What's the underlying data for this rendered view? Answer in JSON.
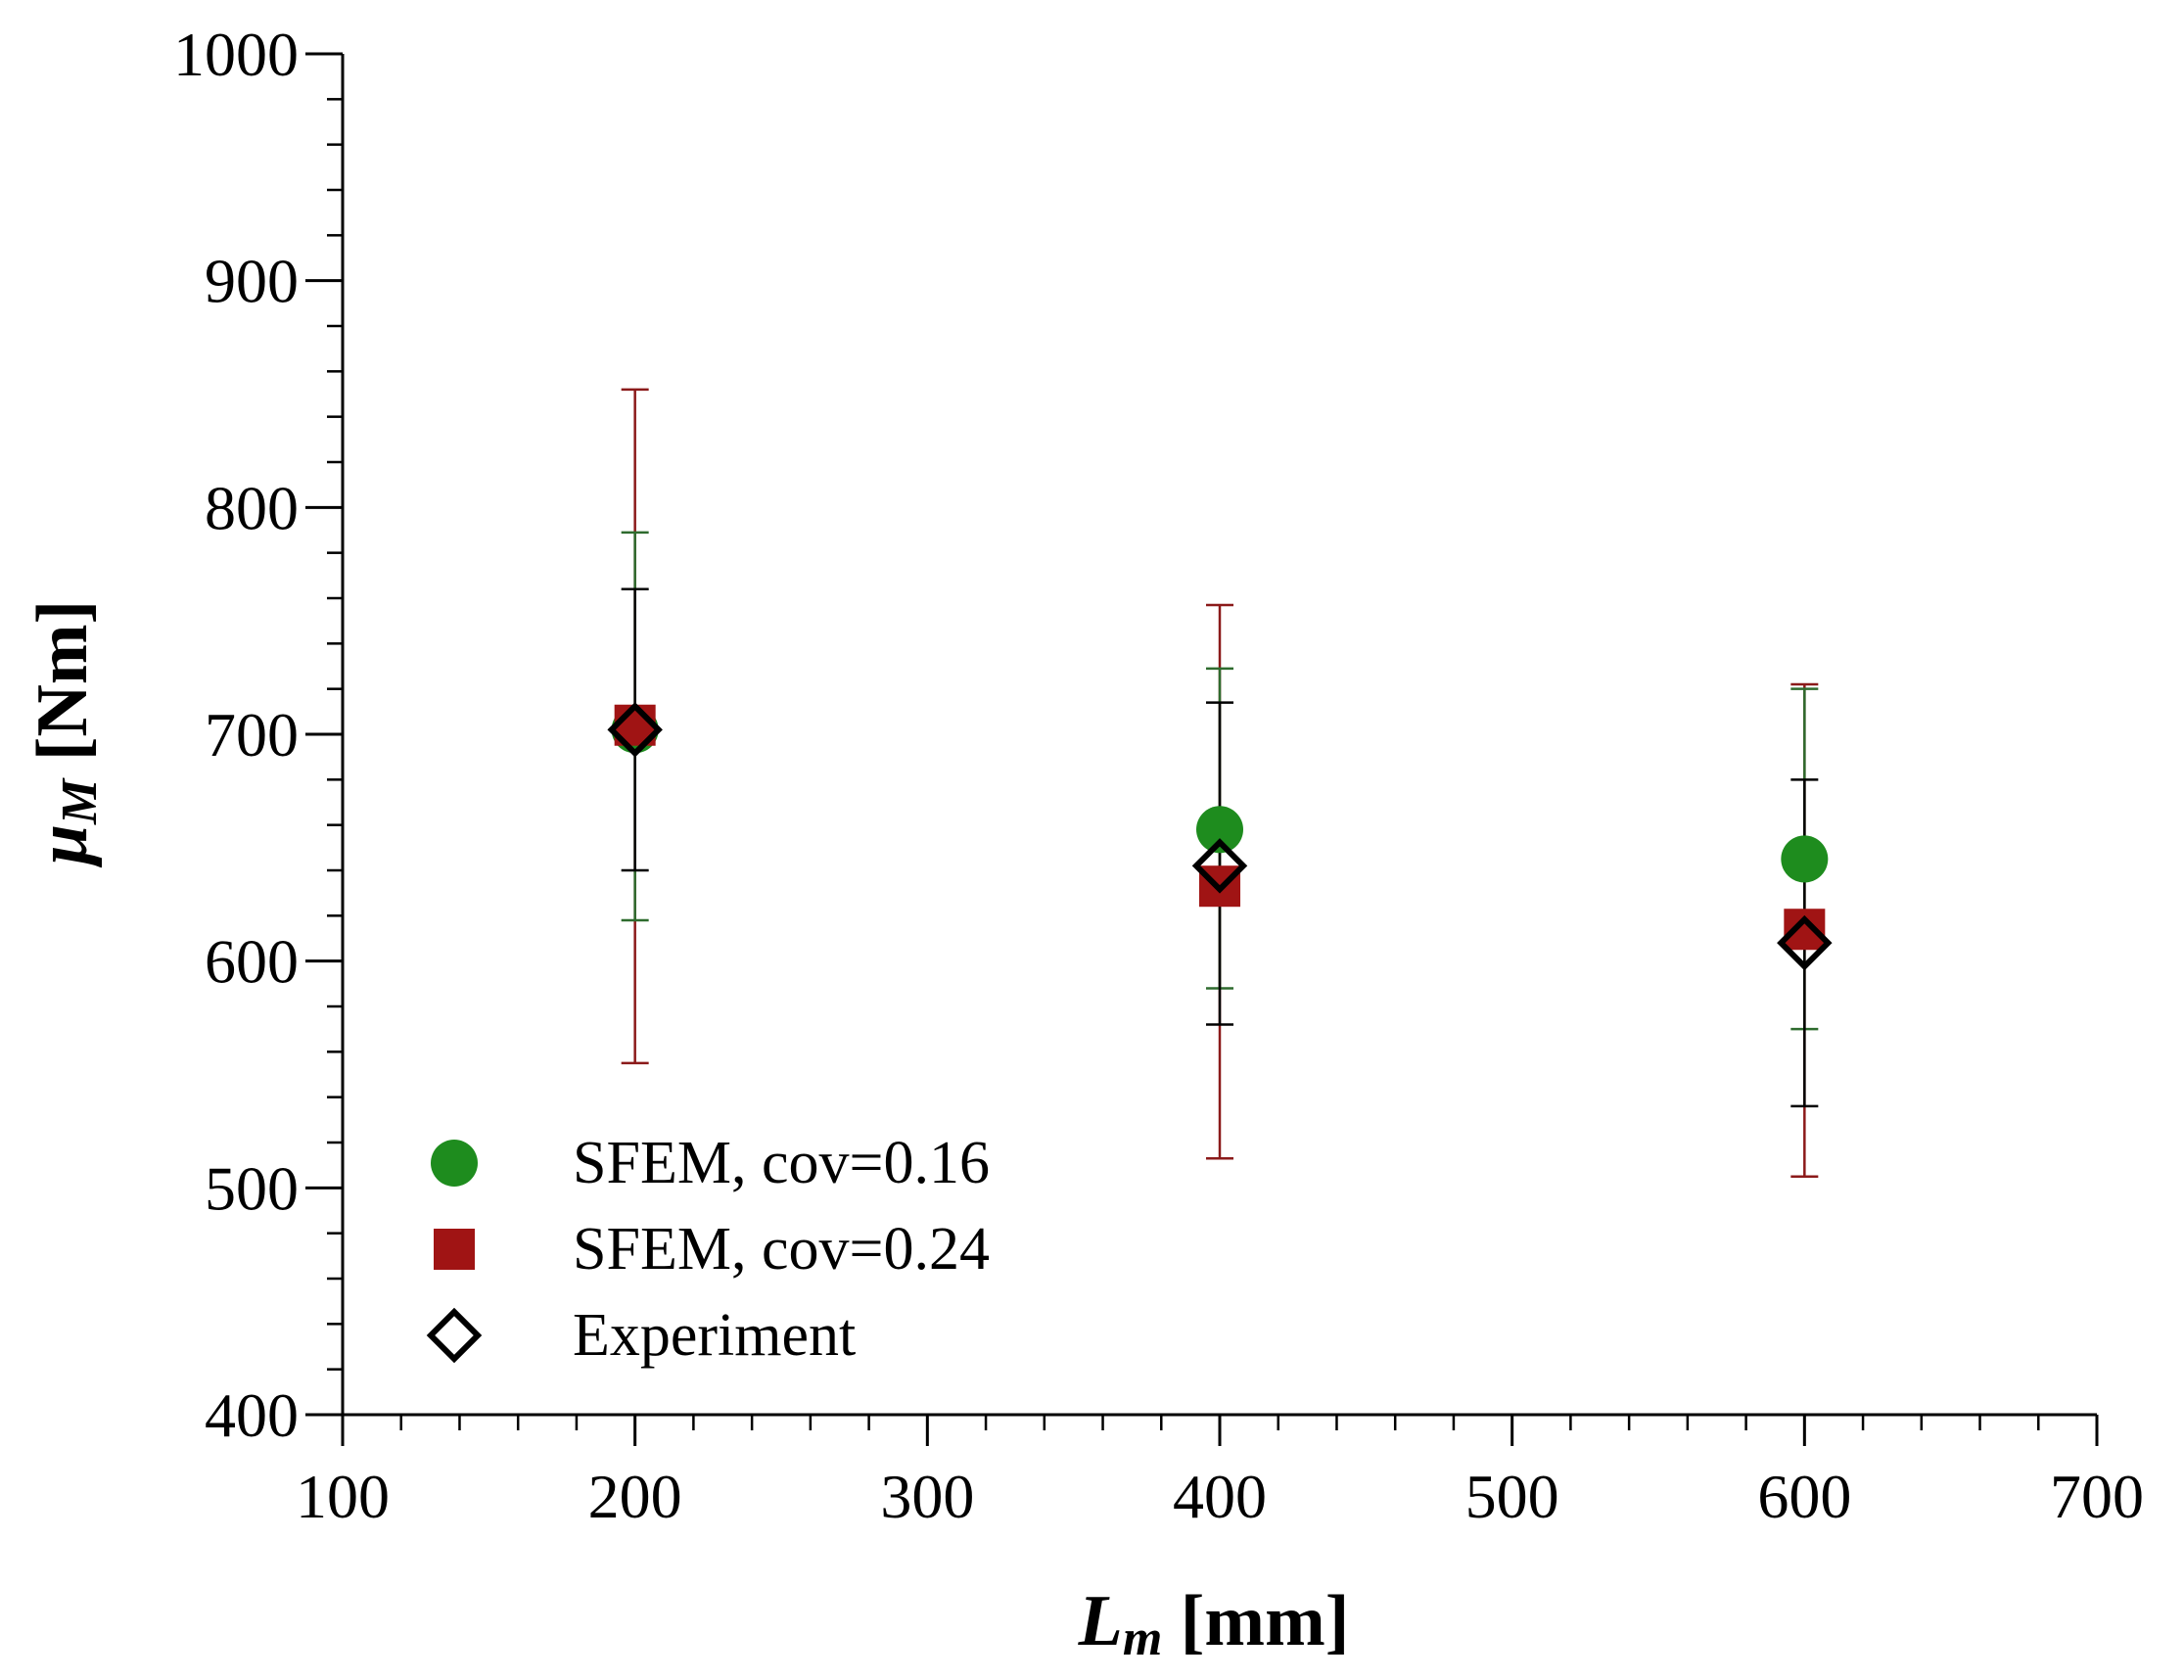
{
  "chart_data": {
    "type": "scatter",
    "title": "",
    "xlabel": {
      "main": "L",
      "sub": "m",
      "unit": " [mm]"
    },
    "ylabel": {
      "main": "μ",
      "sub": "M",
      "unit": " [Nm]"
    },
    "xlim": [
      100,
      700
    ],
    "ylim": [
      400,
      1000
    ],
    "xticks": [
      100,
      200,
      300,
      400,
      500,
      600,
      700
    ],
    "yticks": [
      400,
      500,
      600,
      700,
      800,
      900,
      1000
    ],
    "x_minor_step": 20,
    "y_minor_step": 20,
    "grid": false,
    "legend_position": "bottom-left",
    "series": [
      {
        "name": "SFEM, cov=0.16",
        "marker": "circle",
        "color": "#1e8c1e",
        "x": [
          200,
          400,
          600
        ],
        "y": [
          702,
          658,
          645
        ],
        "err_low": [
          618,
          588,
          570
        ],
        "err_high": [
          789,
          729,
          720
        ],
        "err_color": "#2e6b2e"
      },
      {
        "name": "SFEM, cov=0.24",
        "marker": "square",
        "color": "#a01414",
        "x": [
          200,
          400,
          600
        ],
        "y": [
          704,
          633,
          614
        ],
        "err_low": [
          555,
          513,
          505
        ],
        "err_high": [
          852,
          757,
          722
        ],
        "err_color": "#8b1a1a"
      },
      {
        "name": "Experiment",
        "marker": "diamond",
        "color": "#000000",
        "x": [
          200,
          400,
          600
        ],
        "y": [
          702,
          642,
          608
        ],
        "err_low": [
          640,
          572,
          536
        ],
        "err_high": [
          764,
          714,
          680
        ],
        "err_color": "#000000"
      }
    ]
  }
}
